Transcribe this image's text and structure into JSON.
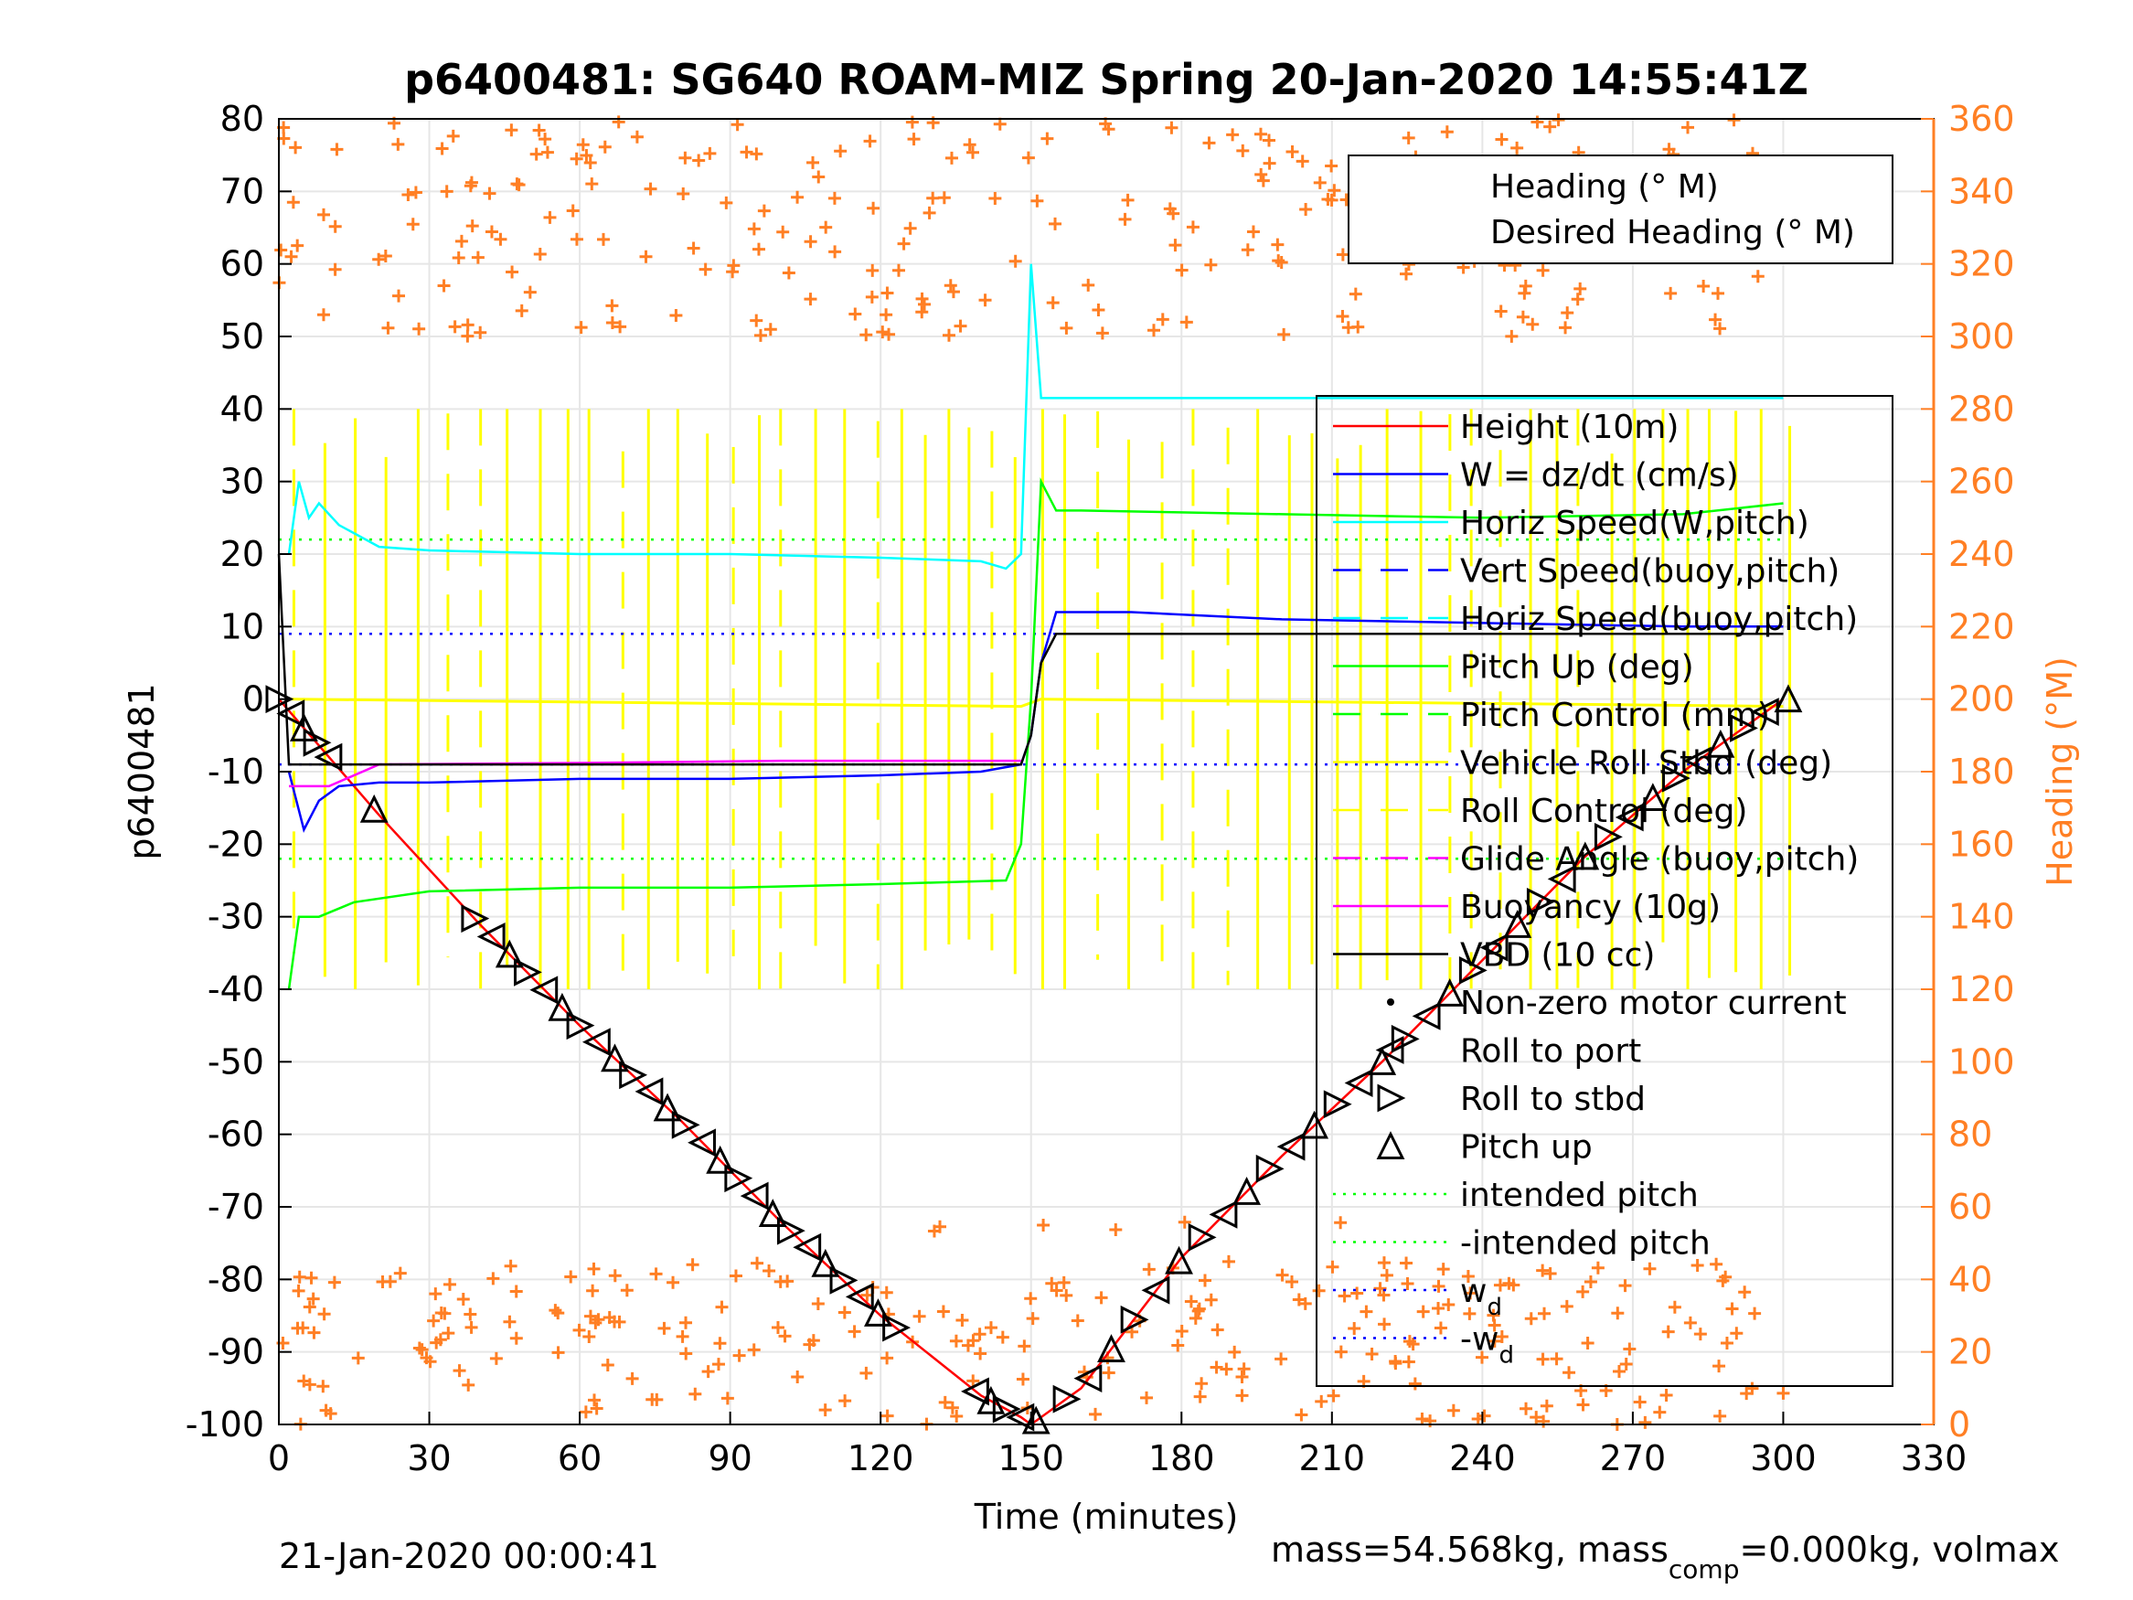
{
  "chart_data": {
    "type": "line",
    "title": "p6400481: SG640 ROAM-MIZ Spring 20-Jan-2020 14:55:41Z",
    "xlabel": "Time (minutes)",
    "ylabel": "p6400481",
    "ylabel_right": "Heading (°M)",
    "xlim": [
      0,
      330
    ],
    "ylim": [
      -100,
      80
    ],
    "ylim_right": [
      0,
      360
    ],
    "x_ticks": [
      "0",
      "30",
      "60",
      "90",
      "120",
      "150",
      "180",
      "210",
      "240",
      "270",
      "300",
      "330"
    ],
    "y_ticks": [
      "80",
      "70",
      "60",
      "50",
      "40",
      "30",
      "20",
      "10",
      "0",
      "-10",
      "-20",
      "-30",
      "-40",
      "-50",
      "-60",
      "-70",
      "-80",
      "-90",
      "-100"
    ],
    "y_right_ticks": [
      "360",
      "340",
      "320",
      "300",
      "280",
      "260",
      "240",
      "220",
      "200",
      "180",
      "160",
      "140",
      "120",
      "100",
      "80",
      "60",
      "40",
      "20",
      "0"
    ],
    "grid": true,
    "footer_left": "21-Jan-2020 00:00:41",
    "footer_right": "mass=54.568kg, mass",
    "footer_right_sub": "comp",
    "footer_right_tail": "=0.000kg, volmax",
    "heading_legend": [
      {
        "label": "Heading (° M)"
      },
      {
        "label": "Desired Heading (° M)"
      }
    ],
    "legend": [
      {
        "label": "Height (10m)",
        "color": "#ff0000",
        "style": "solid"
      },
      {
        "label": "W = dz/dt (cm/s)",
        "color": "#0000ff",
        "style": "solid"
      },
      {
        "label": "Horiz Speed(W,pitch)",
        "color": "#00ffff",
        "style": "solid"
      },
      {
        "label": "Vert Speed(buoy,pitch)",
        "color": "#0000ff",
        "style": "dash"
      },
      {
        "label": "Horiz Speed(buoy,pitch)",
        "color": "#00ffff",
        "style": "dash"
      },
      {
        "label": "Pitch Up (deg)",
        "color": "#00ff00",
        "style": "solid"
      },
      {
        "label": "Pitch Control (mm)",
        "color": "#00ff00",
        "style": "dash"
      },
      {
        "label": "Vehicle Roll Stbd (deg)",
        "color": "#ffff00",
        "style": "solid"
      },
      {
        "label": "Roll Control (deg)",
        "color": "#ffff00",
        "style": "dash"
      },
      {
        "label": "Glide Angle (buoy,pitch)",
        "color": "#ff00ff",
        "style": "dash"
      },
      {
        "label": "Buoyancy (10g)",
        "color": "#ff00ff",
        "style": "solid"
      },
      {
        "label": "VBD (10 cc)",
        "color": "#000000",
        "style": "solid"
      },
      {
        "label": "Non-zero motor current",
        "color": "#000000",
        "style": "dot"
      },
      {
        "label": "Roll to port",
        "color": "#000000",
        "style": "triangle-left"
      },
      {
        "label": "Roll to stbd",
        "color": "#000000",
        "style": "triangle-right"
      },
      {
        "label": "Pitch up",
        "color": "#000000",
        "style": "triangle-up"
      },
      {
        "label": "intended pitch",
        "color": "#00ff00",
        "style": "dotted"
      },
      {
        "label": "-intended pitch",
        "color": "#00ff00",
        "style": "dotted"
      },
      {
        "label": "w",
        "sub": "d",
        "color": "#0000ff",
        "style": "dotted"
      },
      {
        "label": "-w",
        "sub": "d",
        "color": "#0000ff",
        "style": "dotted"
      }
    ],
    "series": [
      {
        "name": "Height (10m)",
        "color": "#ff0000",
        "x": [
          0,
          10,
          20,
          40,
          60,
          80,
          100,
          120,
          140,
          148,
          150,
          152,
          160,
          180,
          200,
          220,
          240,
          260,
          280,
          300
        ],
        "y": [
          0,
          -8,
          -16,
          -31,
          -45,
          -58,
          -72,
          -85,
          -96,
          -99,
          -100,
          -99,
          -95,
          -77,
          -63,
          -50,
          -36,
          -22,
          -10,
          0
        ]
      },
      {
        "name": "W = dz/dt (cm/s)",
        "color": "#0000ff",
        "x": [
          2,
          5,
          8,
          12,
          20,
          30,
          60,
          90,
          120,
          140,
          148,
          150,
          152,
          155,
          170,
          200,
          240,
          280,
          300
        ],
        "y": [
          -10,
          -18,
          -14,
          -12,
          -11.5,
          -11.5,
          -11,
          -11,
          -10.5,
          -10,
          -9,
          -5,
          5,
          12,
          12,
          11,
          10.5,
          10,
          10
        ]
      },
      {
        "name": "Horiz Speed(W,pitch)",
        "color": "#00ffff",
        "x": [
          2,
          4,
          6,
          8,
          12,
          20,
          30,
          60,
          90,
          120,
          140,
          145,
          148,
          150,
          152,
          160,
          200,
          260,
          300
        ],
        "y": [
          20,
          30,
          25,
          27,
          24,
          21,
          20.5,
          20,
          20,
          19.5,
          19,
          18,
          20,
          60,
          41.5,
          41.5,
          41.5,
          41.5,
          41.5
        ]
      },
      {
        "name": "Pitch Up (deg)",
        "color": "#00ff00",
        "x": [
          2,
          4,
          8,
          15,
          30,
          60,
          90,
          120,
          145,
          148,
          150,
          152,
          155,
          160,
          200,
          240,
          280,
          300
        ],
        "y": [
          -40,
          -30,
          -30,
          -28,
          -26.5,
          -26,
          -26,
          -25.5,
          -25,
          -20,
          0,
          30,
          26,
          26,
          25.5,
          25,
          25.5,
          27
        ]
      },
      {
        "name": "Buoyancy (10g)",
        "color": "#ff00ff",
        "x": [
          2,
          10,
          20,
          60,
          100,
          148
        ],
        "y": [
          -12,
          -12,
          -9,
          -8.8,
          -8.5,
          -8.5
        ]
      },
      {
        "name": "VBD (10 cc)",
        "color": "#000000",
        "x": [
          0,
          2,
          30,
          60,
          100,
          148,
          150,
          152,
          155,
          200,
          250,
          300
        ],
        "y": [
          20,
          -9,
          -9,
          -9,
          -9,
          -9,
          -5,
          5,
          9,
          9,
          9,
          9
        ]
      }
    ],
    "reference_lines": [
      {
        "name": "intended pitch",
        "y": 22,
        "color": "#00ff00"
      },
      {
        "name": "-intended pitch",
        "y": -22,
        "color": "#00ff00"
      },
      {
        "name": "w_d",
        "y": 9,
        "color": "#0000ff"
      },
      {
        "name": "-w_d",
        "y": -9,
        "color": "#0000ff"
      }
    ],
    "heading_series": {
      "name": "Heading (° M)",
      "color": "#ff7f24",
      "marker": "+"
    }
  }
}
